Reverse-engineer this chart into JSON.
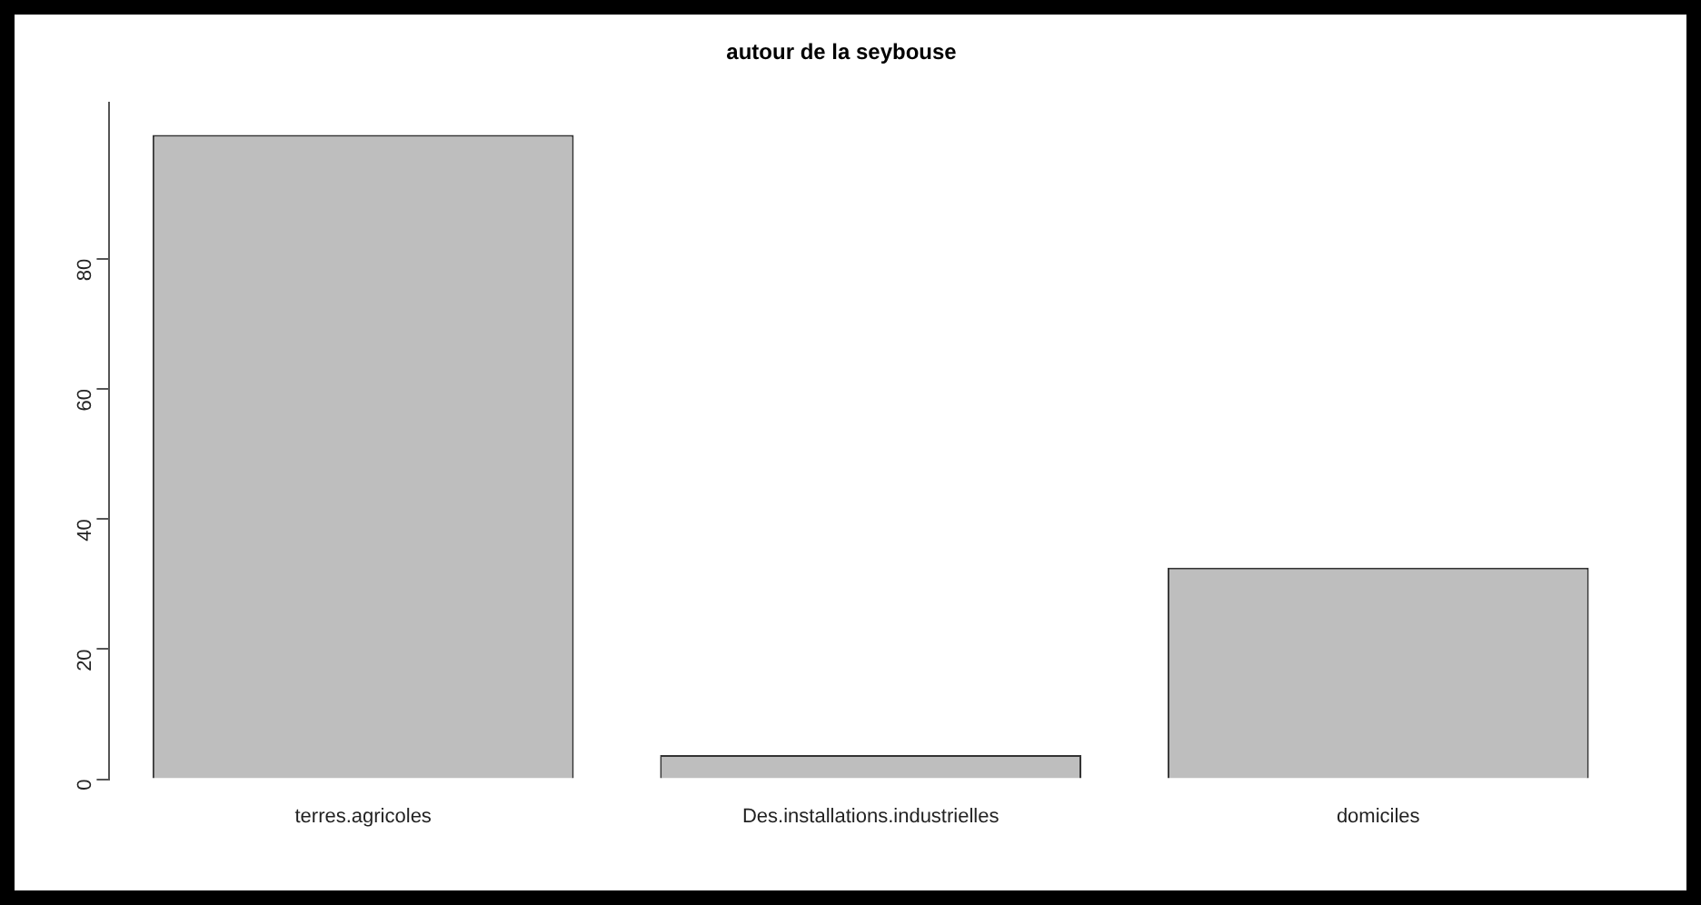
{
  "chart_data": {
    "type": "bar",
    "title": "autour de la seybouse",
    "categories": [
      "terres.agricoles",
      "Des.installations.industrielles",
      "domiciles"
    ],
    "values": [
      99,
      3.7,
      32.5
    ],
    "color": "#bebebe",
    "ylim": [
      0,
      104
    ],
    "yticks": [
      0,
      20,
      40,
      60,
      80
    ],
    "grid": false,
    "legend": false
  }
}
